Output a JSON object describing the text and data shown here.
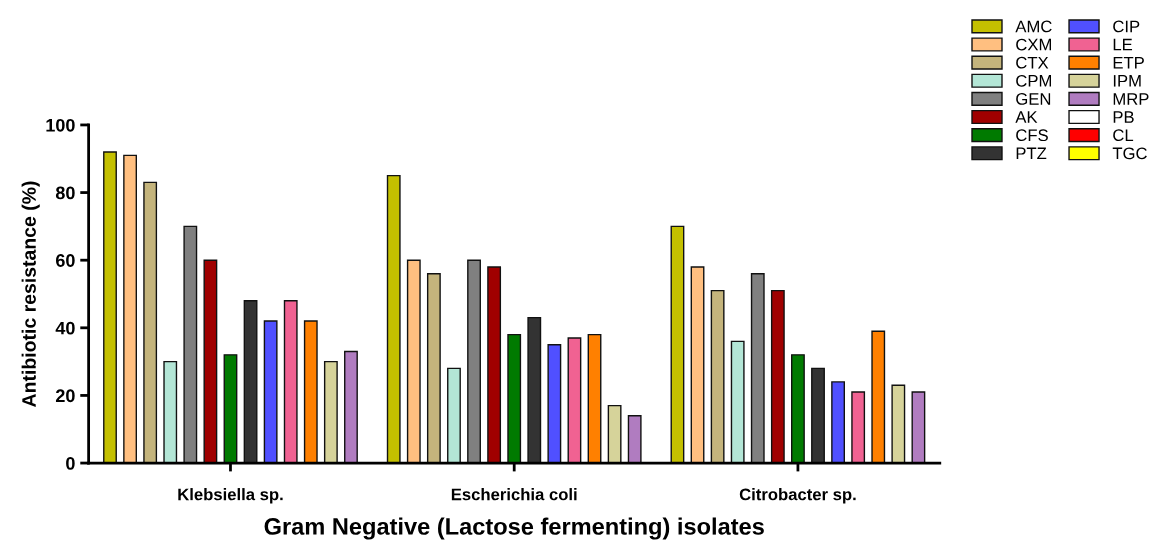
{
  "chart_data": {
    "type": "bar",
    "xlabel": "Gram Negative (Lactose fermenting) isolates",
    "ylabel": "Antibiotic resistance (%)",
    "categories": [
      "Klebsiella sp.",
      "Escherichia coli",
      "Citrobacter sp."
    ],
    "series": [
      {
        "name": "AMC",
        "color": "#c4c000",
        "values": [
          92,
          85,
          70
        ]
      },
      {
        "name": "CXM",
        "color": "#ffbf80",
        "values": [
          91,
          60,
          58
        ]
      },
      {
        "name": "CTX",
        "color": "#c4b47c",
        "values": [
          83,
          56,
          51
        ]
      },
      {
        "name": "CPM",
        "color": "#b3e6d6",
        "values": [
          30,
          28,
          36
        ]
      },
      {
        "name": "GEN",
        "color": "#808080",
        "values": [
          70,
          60,
          56
        ]
      },
      {
        "name": "AK",
        "color": "#a00000",
        "values": [
          60,
          58,
          51
        ]
      },
      {
        "name": "CFS",
        "color": "#007a00",
        "values": [
          32,
          38,
          32
        ]
      },
      {
        "name": "PTZ",
        "color": "#333333",
        "values": [
          48,
          43,
          28
        ]
      },
      {
        "name": "CIP",
        "color": "#5050ff",
        "values": [
          42,
          35,
          24
        ]
      },
      {
        "name": "LE",
        "color": "#f06292",
        "values": [
          48,
          37,
          21
        ]
      },
      {
        "name": "ETP",
        "color": "#ff8000",
        "values": [
          42,
          38,
          39
        ]
      },
      {
        "name": "IPM",
        "color": "#d6d39a",
        "values": [
          30,
          17,
          23
        ]
      },
      {
        "name": "MRP",
        "color": "#b07cc0",
        "values": [
          33,
          14,
          21
        ]
      },
      {
        "name": "PB",
        "color": "#ffffff",
        "values": [
          null,
          null,
          null
        ]
      },
      {
        "name": "CL",
        "color": "#ff0000",
        "values": [
          null,
          null,
          null
        ]
      },
      {
        "name": "TGC",
        "color": "#ffff00",
        "values": [
          null,
          null,
          null
        ]
      }
    ],
    "ylim": [
      0,
      100
    ],
    "yticks": [
      0,
      20,
      40,
      60,
      80,
      100
    ],
    "grid": false,
    "legend": "top right"
  }
}
